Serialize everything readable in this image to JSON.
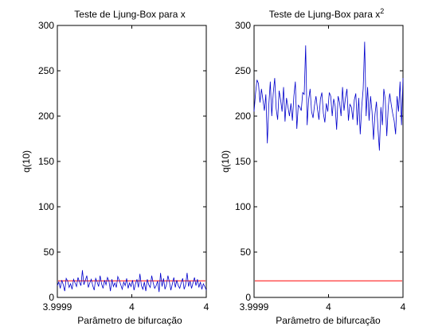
{
  "chart_data": [
    {
      "type": "line",
      "title": "Teste de Ljung-Box para x",
      "title_sup": "",
      "xlabel": "Parâmetro de bifurcação",
      "ylabel": "q(10)",
      "x_ticks": [
        "3.9999",
        "4",
        "4"
      ],
      "y_ticks": [
        0,
        50,
        100,
        150,
        200,
        250,
        300
      ],
      "ylim": [
        0,
        300
      ],
      "grid": false,
      "threshold": {
        "value": 18.3,
        "color": "#ff0000"
      },
      "series_color": "#0000cc",
      "values": [
        13,
        17,
        10,
        19,
        14,
        7,
        21,
        18,
        11,
        15,
        9,
        20,
        16,
        12,
        22,
        17,
        13,
        30,
        14,
        19,
        24,
        11,
        16,
        20,
        13,
        8,
        21,
        17,
        12,
        24,
        15,
        10,
        19,
        14,
        22,
        18,
        7,
        20,
        12,
        16,
        11,
        23,
        19,
        14,
        9,
        17,
        13,
        21,
        10,
        16,
        12,
        19,
        8,
        15,
        20,
        11,
        26,
        13,
        9,
        17,
        7,
        20,
        14,
        11,
        24,
        16,
        10,
        13,
        18,
        6,
        27,
        12,
        21,
        9,
        14,
        24,
        17,
        8,
        15,
        22,
        11,
        19,
        13,
        10,
        16,
        21,
        9,
        14,
        27,
        12,
        18,
        10,
        16,
        22,
        13,
        20,
        11,
        17,
        9,
        15,
        12,
        8
      ]
    },
    {
      "type": "line",
      "title": "Teste de Ljung-Box para x",
      "title_sup": "2",
      "xlabel": "Parâmetro de bifurcação",
      "ylabel": "q(10)",
      "x_ticks": [
        "3.9999",
        "4",
        "4"
      ],
      "y_ticks": [
        0,
        50,
        100,
        150,
        200,
        250,
        300
      ],
      "ylim": [
        0,
        300
      ],
      "grid": false,
      "threshold": {
        "value": 18.3,
        "color": "#ff0000"
      },
      "series_color": "#0000cc",
      "values": [
        205,
        225,
        240,
        236,
        215,
        230,
        218,
        206,
        224,
        170,
        212,
        238,
        200,
        225,
        242,
        208,
        196,
        228,
        218,
        205,
        232,
        194,
        220,
        210,
        200,
        214,
        195,
        222,
        238,
        186,
        212,
        210,
        206,
        226,
        224,
        278,
        190,
        218,
        230,
        205,
        198,
        212,
        222,
        208,
        196,
        219,
        226,
        203,
        193,
        214,
        205,
        226,
        222,
        200,
        219,
        211,
        185,
        222,
        215,
        200,
        232,
        206,
        220,
        230,
        195,
        213,
        210,
        196,
        218,
        225,
        190,
        220,
        180,
        210,
        230,
        282,
        200,
        232,
        195,
        222,
        205,
        174,
        202,
        216,
        187,
        162,
        210,
        190,
        230,
        218,
        178,
        210,
        225,
        213,
        203,
        195,
        180,
        222,
        205,
        238,
        190,
        242
      ]
    }
  ]
}
